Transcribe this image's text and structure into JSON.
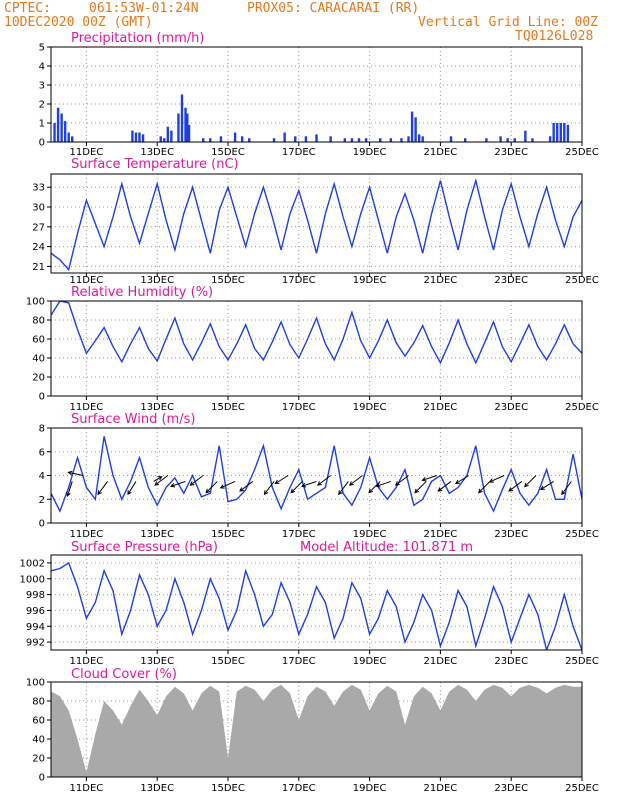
{
  "header": {
    "source": "CPTEC:",
    "coords": "061:53W-01:24N",
    "station": "PROX05: CARACARAI (RR)",
    "date": "10DEC2020 00Z (GMT)",
    "grid_note": "Vertical Grid Line: 00Z",
    "code": "TQ0126L028"
  },
  "colors": {
    "header": "#e07a1f",
    "title": "#d81b9c",
    "series": "#1f3fe0",
    "cloud": "#a9a9a9"
  },
  "x_axis": {
    "range_days": [
      10,
      25
    ],
    "tick_days": [
      11,
      13,
      15,
      17,
      19,
      21,
      23,
      25
    ],
    "tick_labels": [
      "11DEC",
      "13DEC",
      "15DEC",
      "17DEC",
      "19DEC",
      "21DEC",
      "23DEC",
      "25DEC"
    ]
  },
  "chart_data": [
    {
      "id": "precipitation",
      "type": "bar",
      "title": "Precipitation (mm/h)",
      "ylim": [
        0,
        5
      ],
      "yticks": [
        0,
        1,
        2,
        3,
        4,
        5
      ],
      "x": [
        10.1,
        10.2,
        10.3,
        10.4,
        10.5,
        10.6,
        12.3,
        12.4,
        12.5,
        12.6,
        13.1,
        13.2,
        13.3,
        13.4,
        13.6,
        13.7,
        13.8,
        13.85,
        13.9,
        14.3,
        14.5,
        14.8,
        15.2,
        15.4,
        15.6,
        16.3,
        16.6,
        16.9,
        17.2,
        17.5,
        17.9,
        18.3,
        18.5,
        18.7,
        18.9,
        19.3,
        19.6,
        19.9,
        20.1,
        20.2,
        20.3,
        20.4,
        20.5,
        21.3,
        21.7,
        22.3,
        22.7,
        22.9,
        23.1,
        23.4,
        23.6,
        24.1,
        24.2,
        24.3,
        24.4,
        24.5,
        24.6
      ],
      "values": [
        1.0,
        1.8,
        1.5,
        1.1,
        0.5,
        0.3,
        0.6,
        0.5,
        0.5,
        0.4,
        0.3,
        0.2,
        0.8,
        0.6,
        1.5,
        2.5,
        1.8,
        1.5,
        0.9,
        0.2,
        0.2,
        0.3,
        0.5,
        0.3,
        0.2,
        0.2,
        0.5,
        0.3,
        0.3,
        0.4,
        0.3,
        0.2,
        0.2,
        0.2,
        0.2,
        0.2,
        0.2,
        0.2,
        0.3,
        1.6,
        1.3,
        0.4,
        0.3,
        0.3,
        0.2,
        0.2,
        0.3,
        0.2,
        0.2,
        0.6,
        0.2,
        0.3,
        1.0,
        1.0,
        1.0,
        1.0,
        0.9
      ]
    },
    {
      "id": "temperature",
      "type": "line",
      "title": "Surface Temperature (nC)",
      "ylim": [
        20,
        35
      ],
      "yticks": [
        21,
        24,
        27,
        30,
        33
      ],
      "x": [
        10.0,
        10.25,
        10.5,
        10.75,
        11.0,
        11.25,
        11.5,
        11.75,
        12.0,
        12.25,
        12.5,
        12.75,
        13.0,
        13.25,
        13.5,
        13.75,
        14.0,
        14.25,
        14.5,
        14.75,
        15.0,
        15.25,
        15.5,
        15.75,
        16.0,
        16.25,
        16.5,
        16.75,
        17.0,
        17.25,
        17.5,
        17.75,
        18.0,
        18.25,
        18.5,
        18.75,
        19.0,
        19.25,
        19.5,
        19.75,
        20.0,
        20.25,
        20.5,
        20.75,
        21.0,
        21.25,
        21.5,
        21.75,
        22.0,
        22.25,
        22.5,
        22.75,
        23.0,
        23.25,
        23.5,
        23.75,
        24.0,
        24.25,
        24.5,
        24.75,
        25.0
      ],
      "values": [
        23.0,
        22.0,
        20.5,
        26.0,
        31.0,
        27.5,
        24.0,
        28.5,
        33.5,
        28.5,
        24.5,
        29.0,
        33.5,
        28.0,
        23.5,
        29.0,
        33.0,
        28.0,
        23.0,
        29.5,
        33.0,
        28.5,
        24.0,
        29.0,
        33.0,
        28.5,
        23.5,
        29.0,
        32.5,
        28.0,
        23.0,
        29.0,
        33.5,
        28.5,
        24.0,
        29.0,
        33.0,
        28.0,
        23.0,
        28.5,
        32.0,
        28.0,
        23.0,
        29.0,
        34.0,
        28.5,
        23.5,
        29.5,
        34.0,
        28.5,
        23.5,
        29.5,
        33.5,
        28.5,
        24.0,
        29.0,
        33.0,
        28.0,
        24.0,
        28.5,
        31.0
      ]
    },
    {
      "id": "humidity",
      "type": "line",
      "title": "Relative Humidity (%)",
      "ylim": [
        0,
        100
      ],
      "yticks": [
        0,
        20,
        40,
        60,
        80,
        100
      ],
      "x": [
        10.0,
        10.25,
        10.5,
        10.75,
        11.0,
        11.25,
        11.5,
        11.75,
        12.0,
        12.25,
        12.5,
        12.75,
        13.0,
        13.25,
        13.5,
        13.75,
        14.0,
        14.25,
        14.5,
        14.75,
        15.0,
        15.25,
        15.5,
        15.75,
        16.0,
        16.25,
        16.5,
        16.75,
        17.0,
        17.25,
        17.5,
        17.75,
        18.0,
        18.25,
        18.5,
        18.75,
        19.0,
        19.25,
        19.5,
        19.75,
        20.0,
        20.25,
        20.5,
        20.75,
        21.0,
        21.25,
        21.5,
        21.75,
        22.0,
        22.25,
        22.5,
        22.75,
        23.0,
        23.25,
        23.5,
        23.75,
        24.0,
        24.25,
        24.5,
        24.75,
        25.0
      ],
      "values": [
        85.0,
        100.0,
        98.0,
        70.0,
        45.0,
        58.0,
        72.0,
        52.0,
        36.0,
        55.0,
        72.0,
        50.0,
        37.0,
        60.0,
        82.0,
        55.0,
        38.0,
        56.0,
        76.0,
        52.0,
        38.0,
        55.0,
        75.0,
        50.0,
        38.0,
        57.0,
        78.0,
        54.0,
        40.0,
        60.0,
        82.0,
        55.0,
        38.0,
        60.0,
        88.0,
        58.0,
        40.0,
        58.0,
        80.0,
        56.0,
        42.0,
        56.0,
        74.0,
        52.0,
        35.0,
        56.0,
        80.0,
        55.0,
        35.0,
        56.0,
        78.0,
        52.0,
        36.0,
        55.0,
        75.0,
        52.0,
        38.0,
        55.0,
        75.0,
        55.0,
        45.0
      ]
    },
    {
      "id": "wind",
      "type": "line",
      "title": "Surface Wind (m/s)",
      "ylim": [
        0,
        8
      ],
      "yticks": [
        0,
        2,
        4,
        6,
        8
      ],
      "x": [
        10.0,
        10.25,
        10.5,
        10.75,
        11.0,
        11.25,
        11.5,
        11.75,
        12.0,
        12.25,
        12.5,
        12.75,
        13.0,
        13.25,
        13.5,
        13.75,
        14.0,
        14.25,
        14.5,
        14.75,
        15.0,
        15.25,
        15.5,
        15.75,
        16.0,
        16.25,
        16.5,
        16.75,
        17.0,
        17.25,
        17.5,
        17.75,
        18.0,
        18.25,
        18.5,
        18.75,
        19.0,
        19.25,
        19.5,
        19.75,
        20.0,
        20.25,
        20.5,
        20.75,
        21.0,
        21.25,
        21.5,
        21.75,
        22.0,
        22.25,
        22.5,
        22.75,
        23.0,
        23.25,
        23.5,
        23.75,
        24.0,
        24.25,
        24.5,
        24.75,
        25.0
      ],
      "values": [
        2.5,
        1.0,
        3.0,
        5.5,
        3.0,
        2.0,
        7.3,
        4.0,
        2.0,
        3.5,
        5.5,
        3.0,
        1.5,
        3.0,
        3.8,
        2.5,
        4.0,
        2.2,
        2.5,
        6.5,
        1.8,
        2.0,
        2.8,
        4.5,
        6.5,
        3.0,
        1.2,
        3.0,
        4.5,
        2.0,
        2.5,
        3.0,
        6.5,
        2.5,
        1.5,
        3.0,
        5.5,
        3.0,
        2.0,
        3.0,
        4.5,
        1.5,
        2.0,
        3.5,
        4.0,
        2.5,
        3.0,
        4.0,
        6.5,
        2.5,
        1.0,
        2.8,
        4.5,
        2.5,
        1.5,
        2.5,
        4.5,
        2.0,
        2.0,
        5.8,
        2.0
      ],
      "arrows": {
        "x": [
          10.6,
          10.9,
          11.6,
          12.4,
          12.9,
          13.3,
          13.8,
          14.3,
          14.7,
          15.2,
          15.7,
          16.3,
          16.7,
          17.1,
          17.5,
          17.9,
          18.4,
          18.8,
          19.3,
          19.6,
          20.1,
          20.6,
          20.9,
          21.3,
          21.8,
          22.4,
          22.8,
          23.3,
          23.7,
          24.2,
          24.7
        ],
        "y": [
          3.5,
          4.0,
          3.5,
          3.5,
          3.5,
          4.0,
          3.5,
          4.0,
          3.5,
          3.5,
          3.5,
          3.5,
          4.0,
          3.5,
          3.5,
          4.0,
          3.5,
          4.0,
          3.5,
          3.5,
          4.0,
          3.5,
          4.0,
          3.5,
          4.0,
          3.5,
          4.0,
          3.5,
          4.0,
          3.5,
          3.5
        ],
        "u": [
          -0.3,
          -0.9,
          -0.6,
          -0.5,
          0.5,
          -0.8,
          -0.9,
          -0.8,
          -0.7,
          -0.9,
          -0.8,
          -0.6,
          -0.8,
          -0.7,
          -0.9,
          -0.8,
          -0.6,
          -0.8,
          -0.7,
          -0.9,
          -0.8,
          -0.7,
          -0.9,
          -0.8,
          -0.8,
          -0.7,
          -0.9,
          -0.8,
          -0.7,
          -0.8,
          -0.6
        ],
        "v": [
          -0.9,
          0.2,
          -0.8,
          -0.8,
          0.3,
          -0.6,
          -0.3,
          -0.6,
          -0.7,
          -0.4,
          -0.6,
          -0.8,
          -0.5,
          -0.7,
          -0.3,
          -0.6,
          -0.8,
          -0.6,
          -0.7,
          -0.3,
          -0.6,
          -0.7,
          -0.3,
          -0.6,
          -0.5,
          -0.7,
          -0.4,
          -0.6,
          -0.7,
          -0.5,
          -0.8
        ]
      }
    },
    {
      "id": "pressure",
      "type": "line",
      "title": "Surface Pressure (hPa)",
      "annotation": "Model Altitude: 101.871 m",
      "ylim": [
        991,
        1003
      ],
      "yticks": [
        992,
        994,
        996,
        998,
        1000,
        1002
      ],
      "x": [
        10.0,
        10.25,
        10.5,
        10.75,
        11.0,
        11.25,
        11.5,
        11.75,
        12.0,
        12.25,
        12.5,
        12.75,
        13.0,
        13.25,
        13.5,
        13.75,
        14.0,
        14.25,
        14.5,
        14.75,
        15.0,
        15.25,
        15.5,
        15.75,
        16.0,
        16.25,
        16.5,
        16.75,
        17.0,
        17.25,
        17.5,
        17.75,
        18.0,
        18.25,
        18.5,
        18.75,
        19.0,
        19.25,
        19.5,
        19.75,
        20.0,
        20.25,
        20.5,
        20.75,
        21.0,
        21.25,
        21.5,
        21.75,
        22.0,
        22.25,
        22.5,
        22.75,
        23.0,
        23.25,
        23.5,
        23.75,
        24.0,
        24.25,
        24.5,
        24.75,
        25.0
      ],
      "values": [
        1001.0,
        1001.3,
        1002.0,
        999.0,
        995.0,
        997.0,
        1001.0,
        998.5,
        993.0,
        996.0,
        1000.5,
        998.0,
        994.0,
        996.0,
        1000.0,
        997.0,
        993.0,
        996.0,
        1000.0,
        997.5,
        993.5,
        996.0,
        1001.0,
        998.0,
        994.0,
        995.5,
        999.5,
        997.0,
        993.0,
        995.5,
        999.0,
        997.0,
        992.5,
        995.0,
        999.5,
        997.5,
        993.0,
        995.0,
        998.5,
        996.5,
        992.0,
        994.5,
        998.0,
        996.0,
        991.5,
        994.5,
        998.5,
        996.5,
        991.5,
        995.0,
        999.0,
        996.5,
        992.0,
        995.0,
        998.0,
        995.5,
        991.0,
        994.0,
        998.0,
        994.0,
        991.0
      ]
    },
    {
      "id": "cloud",
      "type": "area",
      "title": "Cloud Cover (%)",
      "ylim": [
        0,
        100
      ],
      "yticks": [
        0,
        20,
        40,
        60,
        80,
        100
      ],
      "x": [
        10.0,
        10.25,
        10.5,
        10.75,
        11.0,
        11.25,
        11.5,
        11.75,
        12.0,
        12.25,
        12.5,
        12.75,
        13.0,
        13.25,
        13.5,
        13.75,
        14.0,
        14.25,
        14.5,
        14.75,
        15.0,
        15.25,
        15.5,
        15.75,
        16.0,
        16.25,
        16.5,
        16.75,
        17.0,
        17.25,
        17.5,
        17.75,
        18.0,
        18.25,
        18.5,
        18.75,
        19.0,
        19.25,
        19.5,
        19.75,
        20.0,
        20.25,
        20.5,
        20.75,
        21.0,
        21.25,
        21.5,
        21.75,
        22.0,
        22.25,
        22.5,
        22.75,
        23.0,
        23.25,
        23.5,
        23.75,
        24.0,
        24.25,
        24.5,
        24.75,
        25.0
      ],
      "values": [
        90.0,
        85.0,
        70.0,
        40.0,
        5.0,
        45.0,
        80.0,
        70.0,
        55.0,
        75.0,
        92.0,
        80.0,
        65.0,
        85.0,
        95.0,
        88.0,
        70.0,
        88.0,
        96.0,
        90.0,
        20.0,
        90.0,
        96.0,
        92.0,
        80.0,
        92.0,
        97.0,
        88.0,
        60.0,
        85.0,
        95.0,
        90.0,
        75.0,
        90.0,
        97.0,
        92.0,
        70.0,
        88.0,
        96.0,
        90.0,
        55.0,
        85.0,
        95.0,
        88.0,
        70.0,
        90.0,
        97.0,
        92.0,
        80.0,
        92.0,
        97.0,
        94.0,
        85.0,
        94.0,
        97.0,
        94.0,
        88.0,
        94.0,
        97.0,
        95.0,
        95.0
      ]
    }
  ]
}
